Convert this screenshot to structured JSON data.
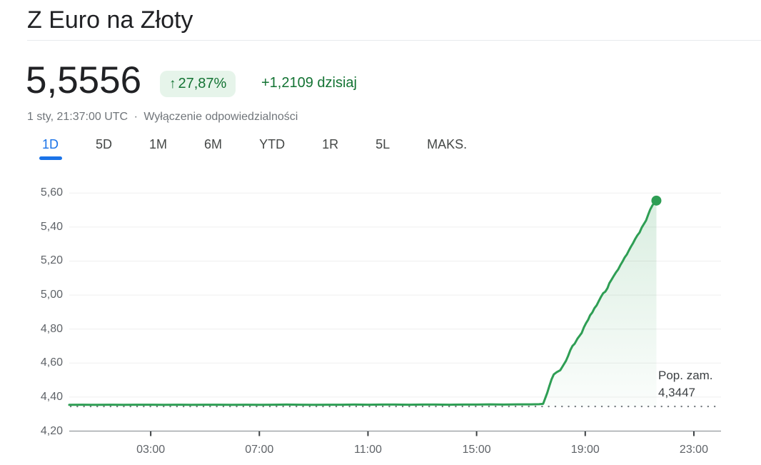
{
  "header": {
    "title": "Z Euro na Złoty"
  },
  "quote": {
    "price": "5,5556",
    "up_arrow": "↑",
    "change_percent": "27,87%",
    "change_absolute": "+1,2109 dzisiaj",
    "timestamp": "1 sty, 21:37:00 UTC",
    "separator": "·",
    "disclaimer": "Wyłączenie odpowiedzialności"
  },
  "tabs": {
    "items": [
      {
        "label": "1D",
        "active": true
      },
      {
        "label": "5D",
        "active": false
      },
      {
        "label": "1M",
        "active": false
      },
      {
        "label": "6M",
        "active": false
      },
      {
        "label": "YTD",
        "active": false
      },
      {
        "label": "1R",
        "active": false
      },
      {
        "label": "5L",
        "active": false
      },
      {
        "label": "MAKS.",
        "active": false
      }
    ]
  },
  "colors": {
    "up_green_text": "#137333",
    "badge_bg": "#e6f4ea",
    "line_green": "#2e9e54",
    "active_tab_blue": "#1a73e8",
    "gridline": "#efefef",
    "axis_line": "#80868b",
    "tick": "#3c4043",
    "axis_label": "#5f6368"
  },
  "chart_data": {
    "type": "area",
    "title": "Z Euro na Złoty — 1D",
    "xlabel": "",
    "ylabel": "",
    "xlim": [
      0,
      24
    ],
    "ylim": [
      4.2,
      5.66
    ],
    "grid": true,
    "x_ticks": [
      {
        "hour": 3,
        "label": "03:00"
      },
      {
        "hour": 7,
        "label": "07:00"
      },
      {
        "hour": 11,
        "label": "11:00"
      },
      {
        "hour": 15,
        "label": "15:00"
      },
      {
        "hour": 19,
        "label": "19:00"
      },
      {
        "hour": 23,
        "label": "23:00"
      }
    ],
    "y_ticks": [
      {
        "value": 5.6,
        "label": "5,60"
      },
      {
        "value": 5.4,
        "label": "5,40"
      },
      {
        "value": 5.2,
        "label": "5,20"
      },
      {
        "value": 5.0,
        "label": "5,00"
      },
      {
        "value": 4.8,
        "label": "4,80"
      },
      {
        "value": 4.6,
        "label": "4,60"
      },
      {
        "value": 4.4,
        "label": "4,40"
      },
      {
        "value": 4.2,
        "label": "4,20"
      }
    ],
    "prev_close": {
      "value": 4.3447,
      "label": "Pop. zam.",
      "value_label": "4,3447"
    },
    "last_point": {
      "t": 21.62,
      "value": 5.5556
    },
    "points": [
      [
        0,
        4.354
      ],
      [
        0.5,
        4.355
      ],
      [
        1,
        4.354
      ],
      [
        1.5,
        4.355
      ],
      [
        2,
        4.354
      ],
      [
        2.5,
        4.355
      ],
      [
        3,
        4.355
      ],
      [
        3.5,
        4.354
      ],
      [
        4,
        4.355
      ],
      [
        4.5,
        4.354
      ],
      [
        5,
        4.355
      ],
      [
        5.5,
        4.355
      ],
      [
        6,
        4.354
      ],
      [
        6.5,
        4.355
      ],
      [
        7,
        4.354
      ],
      [
        7.5,
        4.355
      ],
      [
        8,
        4.356
      ],
      [
        8.5,
        4.355
      ],
      [
        9,
        4.354
      ],
      [
        9.5,
        4.355
      ],
      [
        10,
        4.355
      ],
      [
        10.5,
        4.356
      ],
      [
        11,
        4.355
      ],
      [
        11.5,
        4.356
      ],
      [
        12,
        4.356
      ],
      [
        12.5,
        4.355
      ],
      [
        13,
        4.356
      ],
      [
        13.5,
        4.356
      ],
      [
        14,
        4.355
      ],
      [
        14.5,
        4.356
      ],
      [
        15,
        4.356
      ],
      [
        15.5,
        4.357
      ],
      [
        16,
        4.356
      ],
      [
        16.5,
        4.357
      ],
      [
        17,
        4.357
      ],
      [
        17.3,
        4.358
      ],
      [
        17.45,
        4.36
      ],
      [
        17.6,
        4.424
      ],
      [
        17.68,
        4.466
      ],
      [
        17.76,
        4.504
      ],
      [
        17.84,
        4.533
      ],
      [
        17.95,
        4.546
      ],
      [
        18.08,
        4.558
      ],
      [
        18.18,
        4.584
      ],
      [
        18.29,
        4.613
      ],
      [
        18.37,
        4.642
      ],
      [
        18.45,
        4.676
      ],
      [
        18.53,
        4.701
      ],
      [
        18.61,
        4.714
      ],
      [
        18.71,
        4.743
      ],
      [
        18.79,
        4.76
      ],
      [
        18.87,
        4.777
      ],
      [
        18.95,
        4.81
      ],
      [
        19.03,
        4.835
      ],
      [
        19.11,
        4.856
      ],
      [
        19.18,
        4.881
      ],
      [
        19.26,
        4.898
      ],
      [
        19.34,
        4.923
      ],
      [
        19.42,
        4.94
      ],
      [
        19.5,
        4.965
      ],
      [
        19.58,
        4.99
      ],
      [
        19.66,
        5.011
      ],
      [
        19.74,
        5.02
      ],
      [
        19.82,
        5.041
      ],
      [
        19.89,
        5.07
      ],
      [
        19.97,
        5.091
      ],
      [
        20.05,
        5.112
      ],
      [
        20.13,
        5.133
      ],
      [
        20.21,
        5.15
      ],
      [
        20.29,
        5.175
      ],
      [
        20.37,
        5.196
      ],
      [
        20.45,
        5.221
      ],
      [
        20.53,
        5.238
      ],
      [
        20.61,
        5.263
      ],
      [
        20.68,
        5.284
      ],
      [
        20.76,
        5.305
      ],
      [
        20.84,
        5.33
      ],
      [
        20.92,
        5.351
      ],
      [
        21.0,
        5.368
      ],
      [
        21.08,
        5.397
      ],
      [
        21.16,
        5.418
      ],
      [
        21.24,
        5.439
      ],
      [
        21.32,
        5.473
      ],
      [
        21.39,
        5.502
      ],
      [
        21.47,
        5.527
      ],
      [
        21.55,
        5.545
      ],
      [
        21.62,
        5.5556
      ]
    ]
  }
}
